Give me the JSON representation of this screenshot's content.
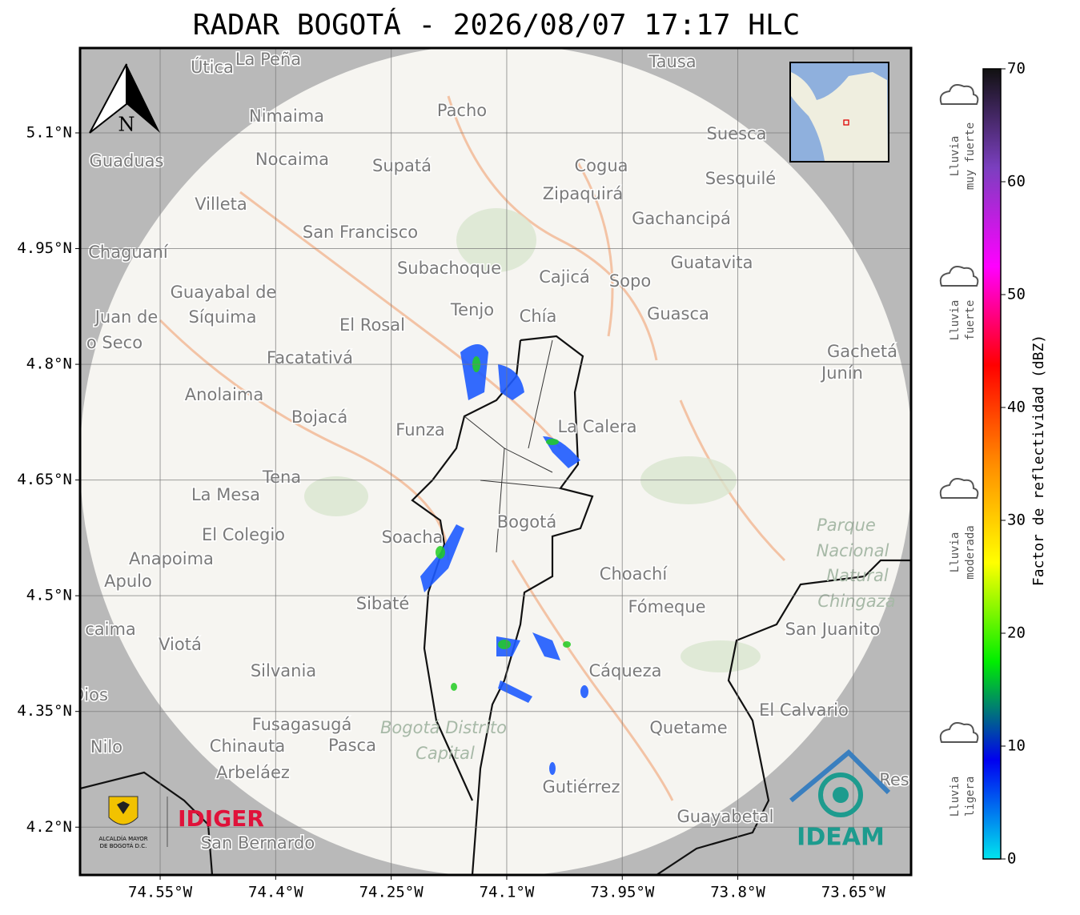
{
  "map": {
    "title": "RADAR BOGOTÁ - 2026/08/07 17:17 HLC",
    "xlim": [
      -74.654,
      -73.575
    ],
    "ylim": [
      4.138,
      5.21
    ],
    "xticks": [
      {
        "value": -74.55,
        "label": "74.55°W"
      },
      {
        "value": -74.4,
        "label": "74.4°W"
      },
      {
        "value": -74.25,
        "label": "74.25°W"
      },
      {
        "value": -74.1,
        "label": "74.1°W"
      },
      {
        "value": -73.95,
        "label": "73.95°W"
      },
      {
        "value": -73.8,
        "label": "73.8°W"
      },
      {
        "value": -73.65,
        "label": "73.65°W"
      }
    ],
    "yticks": [
      {
        "value": 5.1,
        "label": "5.1°N"
      },
      {
        "value": 4.95,
        "label": "4.95°N"
      },
      {
        "value": 4.8,
        "label": "4.8°N"
      },
      {
        "value": 4.65,
        "label": "4.65°N"
      },
      {
        "value": 4.5,
        "label": "4.5°N"
      },
      {
        "value": 4.35,
        "label": "4.35°N"
      },
      {
        "value": 4.2,
        "label": "4.2°N"
      }
    ],
    "grid": true,
    "north": "N",
    "places": [
      "Útica",
      "La Peña",
      "Tausa",
      "Pacho",
      "Nimaima",
      "Guaduas",
      "Nocaima",
      "Supatá",
      "Cogua",
      "Suesca",
      "Sesquilé",
      "Zipaquirá",
      "Villeta",
      "Gachancipá",
      "San Francisco",
      "Chaguaní",
      "Subachoque",
      "Guatavita",
      "Cajicá",
      "Sopo",
      "Guayabal de",
      "Síquima",
      "Juan de",
      "o Seco",
      "Tenjo",
      "Chía",
      "Guasca",
      "El Rosal",
      "Facatativá",
      "Gachetá",
      "Junín",
      "Anolaima",
      "Bojacá",
      "Funza",
      "La Calera",
      "Tena",
      "La Mesa",
      "Bogotá",
      "Soacha",
      "El Colegio",
      "Anapoima",
      "Apulo",
      "Choachí",
      "Sibaté",
      "Fómeque",
      "San Juanito",
      "caima",
      "Viotá",
      "Cáqueza",
      "Silvania",
      "Dios",
      "El Calvario",
      "Fusagasugá",
      "Quetame",
      "Nilo",
      "Chinauta",
      "Pasca",
      "Arbeláez",
      "Gutiérrez",
      "Res",
      "Guayabetal",
      "San Bernardo"
    ],
    "park": [
      "Parque",
      "Nacional",
      "Natural",
      "Chingaza",
      "Bogotá Distrito",
      "Capital"
    ],
    "logos": {
      "idiger": "IDIGER",
      "ideam": "IDEAM",
      "alcaldia": [
        "ALCALDÍA MAYOR",
        "DE BOGOTÁ D.C."
      ]
    }
  },
  "colorbar": {
    "label": "Factor de reflectividad (dBZ)",
    "clim": [
      0,
      70
    ],
    "ticks": [
      0,
      10,
      20,
      30,
      40,
      50,
      60,
      70
    ],
    "colors": [
      "#00e5ee",
      "#0000f0",
      "#00ee00",
      "#ffff00",
      "#ff8c00",
      "#ff0000",
      "#ff00ff",
      "#7b3fbf",
      "#111111"
    ],
    "legend": [
      [
        "Lluvia",
        "muy fuerte"
      ],
      [
        "Lluvia",
        "fuerte"
      ],
      [
        "Lluvia",
        "moderada"
      ],
      [
        "Lluvia",
        "ligera"
      ]
    ]
  }
}
